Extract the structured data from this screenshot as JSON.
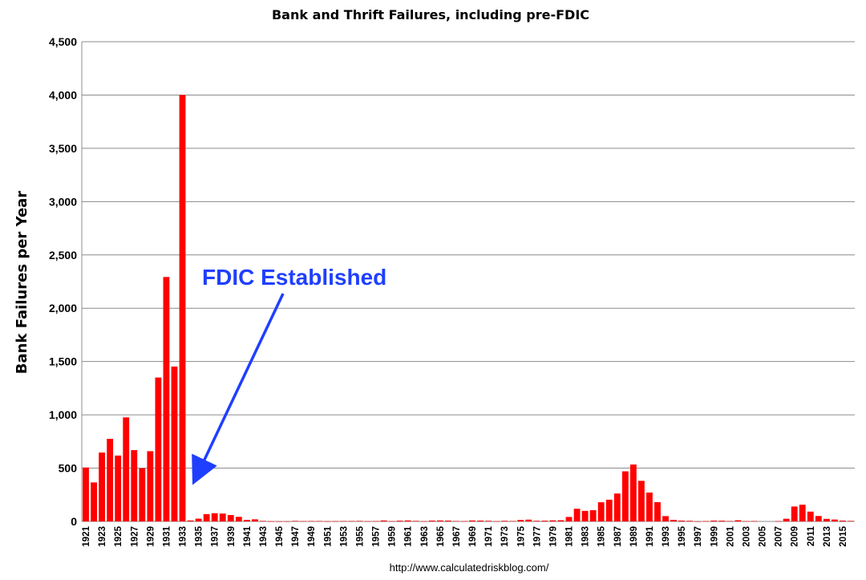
{
  "chart_data": {
    "type": "bar",
    "title": "Bank and Thrift Failures, including pre-FDIC",
    "xlabel": "",
    "ylabel": "Bank Failures per Year",
    "ylim": [
      0,
      4500
    ],
    "yticks": [
      "0",
      "500",
      "1,000",
      "1,500",
      "2,000",
      "2,500",
      "3,000",
      "3,500",
      "4,000",
      "4,500"
    ],
    "grid": true,
    "legend": "none",
    "source": "http://www.calculatedriskblog.com/",
    "annotation": "FDIC Established",
    "colors": {
      "bar": "#ff0000",
      "annotation": "#1f3fff",
      "grid": "#8c8c8c"
    },
    "categories": [
      "1921",
      "1922",
      "1923",
      "1924",
      "1925",
      "1926",
      "1927",
      "1928",
      "1929",
      "1930",
      "1931",
      "1932",
      "1933",
      "1934",
      "1935",
      "1936",
      "1937",
      "1938",
      "1939",
      "1940",
      "1941",
      "1942",
      "1943",
      "1944",
      "1945",
      "1946",
      "1947",
      "1948",
      "1949",
      "1950",
      "1951",
      "1952",
      "1953",
      "1954",
      "1955",
      "1956",
      "1957",
      "1958",
      "1959",
      "1960",
      "1961",
      "1962",
      "1963",
      "1964",
      "1965",
      "1966",
      "1967",
      "1968",
      "1969",
      "1970",
      "1971",
      "1972",
      "1973",
      "1974",
      "1975",
      "1976",
      "1977",
      "1978",
      "1979",
      "1980",
      "1981",
      "1982",
      "1983",
      "1984",
      "1985",
      "1986",
      "1987",
      "1988",
      "1989",
      "1990",
      "1991",
      "1992",
      "1993",
      "1994",
      "1995",
      "1996",
      "1997",
      "1998",
      "1999",
      "2000",
      "2001",
      "2002",
      "2003",
      "2004",
      "2005",
      "2006",
      "2007",
      "2008",
      "2009",
      "2010",
      "2011",
      "2012",
      "2013",
      "2014",
      "2015",
      "2016"
    ],
    "values": [
      506,
      366,
      646,
      775,
      618,
      976,
      669,
      499,
      659,
      1350,
      2293,
      1453,
      4000,
      9,
      26,
      69,
      77,
      74,
      60,
      43,
      15,
      20,
      5,
      2,
      1,
      1,
      5,
      3,
      4,
      4,
      2,
      3,
      4,
      4,
      5,
      2,
      3,
      9,
      3,
      7,
      9,
      5,
      2,
      8,
      9,
      8,
      4,
      3,
      9,
      8,
      6,
      2,
      6,
      4,
      14,
      17,
      6,
      7,
      10,
      11,
      42,
      119,
      99,
      106,
      180,
      204,
      262,
      470,
      534,
      381,
      271,
      181,
      50,
      15,
      8,
      6,
      1,
      3,
      8,
      7,
      4,
      11,
      3,
      4,
      0,
      0,
      3,
      25,
      140,
      157,
      92,
      51,
      24,
      18,
      8,
      5
    ],
    "xtick_labels": [
      "1921",
      "1923",
      "1925",
      "1927",
      "1929",
      "1931",
      "1933",
      "1935",
      "1937",
      "1939",
      "1941",
      "1943",
      "1945",
      "1947",
      "1949",
      "1951",
      "1953",
      "1955",
      "1957",
      "1959",
      "1961",
      "1963",
      "1965",
      "1967",
      "1969",
      "1971",
      "1973",
      "1975",
      "1977",
      "1979",
      "1981",
      "1983",
      "1985",
      "1987",
      "1989",
      "1991",
      "1993",
      "1995",
      "1997",
      "1999",
      "2001",
      "2003",
      "2005",
      "2007",
      "2009",
      "2011",
      "2013",
      "2015"
    ]
  }
}
